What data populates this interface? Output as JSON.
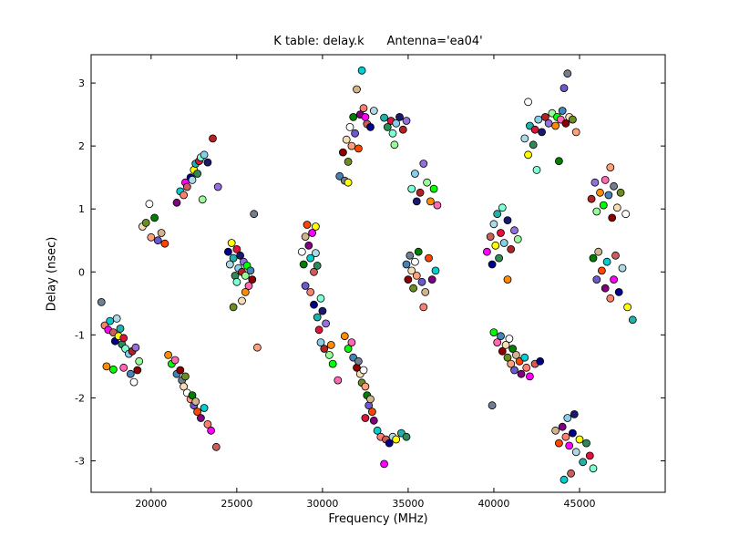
{
  "chart_data": {
    "type": "scatter",
    "title": "K table: delay.k      Antenna='ea04'",
    "xlabel": "Frequency (MHz)",
    "ylabel": "Delay (nsec)",
    "xlim": [
      16500,
      50000
    ],
    "ylim": [
      -3.5,
      3.45
    ],
    "xticks": [
      20000,
      25000,
      30000,
      35000,
      40000,
      45000
    ],
    "yticks": [
      -3,
      -2,
      -1,
      0,
      1,
      2,
      3
    ],
    "grid": false,
    "legend": "none",
    "marker": {
      "shape": "circle",
      "radius": 4,
      "edge_color": "#000000"
    },
    "palette": [
      "#00008b",
      "#87ceeb",
      "#ff8c00",
      "#fa8072",
      "#ffffff",
      "#2e8b57",
      "#8b0000",
      "#9370db",
      "#00ced1",
      "#ffff00",
      "#ff69b4",
      "#6b8e23",
      "#add8e6",
      "#008000",
      "#dc143c",
      "#708090",
      "#00ff00",
      "#ff00ff",
      "#4682b4",
      "#d2b48c",
      "#7fffd4",
      "#800080",
      "#ffa07a",
      "#191970",
      "#98fb98",
      "#cd5c5c",
      "#dcdcdc",
      "#ff4500",
      "#20b2aa",
      "#f5deb3",
      "#6a5acd",
      "#b22222"
    ],
    "points": [
      [
        17300,
        -0.85,
        3
      ],
      [
        17500,
        -0.92,
        17
      ],
      [
        17600,
        -0.78,
        8
      ],
      [
        17800,
        -0.96,
        25
      ],
      [
        17900,
        -1.1,
        0
      ],
      [
        18000,
        -0.74,
        12
      ],
      [
        18100,
        -1.02,
        9
      ],
      [
        18200,
        -0.9,
        28
      ],
      [
        18300,
        -1.15,
        5
      ],
      [
        18400,
        -1.05,
        14
      ],
      [
        18500,
        -1.22,
        20
      ],
      [
        18700,
        -1.3,
        1
      ],
      [
        18900,
        -1.26,
        31
      ],
      [
        19100,
        -1.2,
        7
      ],
      [
        19300,
        -1.42,
        24
      ],
      [
        17400,
        -1.5,
        2
      ],
      [
        17800,
        -1.55,
        16
      ],
      [
        18400,
        -1.52,
        10
      ],
      [
        18800,
        -1.62,
        18
      ],
      [
        19200,
        -1.56,
        6
      ],
      [
        17100,
        -0.48,
        15
      ],
      [
        19000,
        -1.75,
        4
      ],
      [
        19500,
        0.72,
        29
      ],
      [
        19700,
        0.78,
        11
      ],
      [
        19900,
        1.08,
        4
      ],
      [
        20000,
        0.55,
        22
      ],
      [
        20200,
        0.86,
        13
      ],
      [
        20400,
        0.5,
        30
      ],
      [
        20600,
        0.62,
        19
      ],
      [
        20800,
        0.45,
        27
      ],
      [
        21500,
        1.1,
        21
      ],
      [
        21700,
        1.28,
        8
      ],
      [
        21900,
        1.22,
        3
      ],
      [
        22000,
        1.42,
        17
      ],
      [
        22100,
        1.35,
        25
      ],
      [
        22300,
        1.5,
        0
      ],
      [
        22400,
        1.46,
        12
      ],
      [
        22500,
        1.62,
        9
      ],
      [
        22600,
        1.72,
        28
      ],
      [
        22700,
        1.56,
        5
      ],
      [
        22800,
        1.76,
        14
      ],
      [
        22900,
        1.82,
        20
      ],
      [
        23100,
        1.86,
        1
      ],
      [
        23300,
        1.74,
        23
      ],
      [
        23600,
        2.12,
        31
      ],
      [
        23900,
        1.35,
        7
      ],
      [
        23000,
        1.15,
        24
      ],
      [
        21000,
        -1.32,
        2
      ],
      [
        21200,
        -1.46,
        16
      ],
      [
        21400,
        -1.4,
        10
      ],
      [
        21500,
        -1.62,
        18
      ],
      [
        21700,
        -1.56,
        6
      ],
      [
        21800,
        -1.72,
        15
      ],
      [
        21900,
        -1.82,
        29
      ],
      [
        22000,
        -1.66,
        11
      ],
      [
        22100,
        -1.92,
        4
      ],
      [
        22300,
        -2.02,
        22
      ],
      [
        22400,
        -1.96,
        13
      ],
      [
        22500,
        -2.12,
        30
      ],
      [
        22600,
        -2.06,
        19
      ],
      [
        22700,
        -2.22,
        27
      ],
      [
        22900,
        -2.32,
        21
      ],
      [
        23100,
        -2.16,
        8
      ],
      [
        23300,
        -2.42,
        3
      ],
      [
        23500,
        -2.52,
        17
      ],
      [
        23800,
        -2.78,
        25
      ],
      [
        24500,
        0.32,
        0
      ],
      [
        24600,
        0.12,
        12
      ],
      [
        24700,
        0.46,
        9
      ],
      [
        24800,
        0.22,
        28
      ],
      [
        24900,
        -0.06,
        5
      ],
      [
        25000,
        0.36,
        14
      ],
      [
        25000,
        -0.16,
        20
      ],
      [
        25100,
        0.06,
        1
      ],
      [
        25200,
        0.26,
        23
      ],
      [
        25300,
        0.0,
        31
      ],
      [
        25400,
        0.16,
        7
      ],
      [
        25500,
        -0.06,
        24
      ],
      [
        25500,
        -0.32,
        2
      ],
      [
        25600,
        0.1,
        16
      ],
      [
        25700,
        -0.22,
        10
      ],
      [
        25800,
        0.02,
        18
      ],
      [
        25900,
        -0.12,
        6
      ],
      [
        26000,
        0.92,
        15
      ],
      [
        25300,
        -0.46,
        29
      ],
      [
        24800,
        -0.56,
        11
      ],
      [
        26200,
        -1.2,
        22
      ],
      [
        28800,
        0.32,
        4
      ],
      [
        28900,
        0.12,
        13
      ],
      [
        29000,
        -0.22,
        30
      ],
      [
        29000,
        0.56,
        19
      ],
      [
        29100,
        0.75,
        27
      ],
      [
        29200,
        0.42,
        21
      ],
      [
        29300,
        0.22,
        8
      ],
      [
        29300,
        -0.32,
        3
      ],
      [
        29400,
        0.62,
        17
      ],
      [
        29500,
        0.0,
        25
      ],
      [
        29500,
        -0.52,
        0
      ],
      [
        29600,
        0.3,
        12
      ],
      [
        29600,
        0.72,
        9
      ],
      [
        29700,
        -0.72,
        28
      ],
      [
        29700,
        0.1,
        5
      ],
      [
        29800,
        -0.92,
        14
      ],
      [
        29900,
        -0.42,
        20
      ],
      [
        29900,
        -1.12,
        1
      ],
      [
        30000,
        -0.62,
        23
      ],
      [
        30100,
        -1.22,
        31
      ],
      [
        30200,
        -0.82,
        7
      ],
      [
        30400,
        -1.32,
        24
      ],
      [
        30500,
        -1.16,
        2
      ],
      [
        30600,
        -1.46,
        16
      ],
      [
        30900,
        -1.72,
        10
      ],
      [
        31000,
        1.52,
        18
      ],
      [
        31200,
        1.9,
        6
      ],
      [
        31300,
        1.45,
        15
      ],
      [
        31400,
        2.1,
        29
      ],
      [
        31500,
        1.75,
        11
      ],
      [
        31600,
        2.3,
        4
      ],
      [
        31700,
        2.0,
        22
      ],
      [
        31800,
        2.46,
        13
      ],
      [
        31900,
        2.2,
        30
      ],
      [
        32000,
        2.9,
        19
      ],
      [
        32100,
        1.96,
        27
      ],
      [
        32200,
        2.5,
        21
      ],
      [
        32300,
        3.2,
        8
      ],
      [
        32400,
        2.6,
        3
      ],
      [
        32500,
        2.46,
        17
      ],
      [
        32600,
        2.35,
        25
      ],
      [
        32800,
        2.3,
        0
      ],
      [
        33000,
        2.56,
        12
      ],
      [
        31500,
        1.42,
        9
      ],
      [
        33600,
        2.45,
        28
      ],
      [
        33800,
        2.3,
        5
      ],
      [
        34000,
        2.4,
        14
      ],
      [
        34100,
        2.2,
        20
      ],
      [
        34300,
        2.36,
        1
      ],
      [
        34500,
        2.46,
        23
      ],
      [
        34700,
        2.26,
        31
      ],
      [
        34900,
        2.4,
        7
      ],
      [
        34200,
        2.02,
        24
      ],
      [
        31300,
        -1.02,
        2
      ],
      [
        31500,
        -1.22,
        16
      ],
      [
        31700,
        -1.12,
        10
      ],
      [
        31800,
        -1.36,
        18
      ],
      [
        32000,
        -1.52,
        6
      ],
      [
        32100,
        -1.42,
        15
      ],
      [
        32200,
        -1.62,
        29
      ],
      [
        32300,
        -1.76,
        11
      ],
      [
        32400,
        -1.56,
        4
      ],
      [
        32500,
        -1.82,
        22
      ],
      [
        32600,
        -1.96,
        13
      ],
      [
        32700,
        -2.12,
        30
      ],
      [
        32800,
        -2.02,
        19
      ],
      [
        32900,
        -2.22,
        27
      ],
      [
        33000,
        -2.36,
        21
      ],
      [
        33200,
        -2.52,
        8
      ],
      [
        33400,
        -2.62,
        3
      ],
      [
        33600,
        -3.05,
        17
      ],
      [
        33700,
        -2.66,
        25
      ],
      [
        33900,
        -2.72,
        0
      ],
      [
        34100,
        -2.62,
        12
      ],
      [
        34300,
        -2.66,
        9
      ],
      [
        34600,
        -2.56,
        28
      ],
      [
        34900,
        -2.62,
        5
      ],
      [
        32500,
        -2.32,
        14
      ],
      [
        35200,
        1.32,
        20
      ],
      [
        35400,
        1.56,
        1
      ],
      [
        35500,
        1.12,
        23
      ],
      [
        35700,
        1.26,
        31
      ],
      [
        35900,
        1.72,
        7
      ],
      [
        36100,
        1.42,
        24
      ],
      [
        36300,
        1.12,
        2
      ],
      [
        36500,
        1.32,
        16
      ],
      [
        36700,
        1.06,
        10
      ],
      [
        34900,
        0.12,
        18
      ],
      [
        35000,
        -0.12,
        6
      ],
      [
        35100,
        0.26,
        15
      ],
      [
        35200,
        0.02,
        29
      ],
      [
        35300,
        -0.26,
        11
      ],
      [
        35400,
        0.16,
        4
      ],
      [
        35500,
        -0.06,
        22
      ],
      [
        35600,
        0.32,
        13
      ],
      [
        35800,
        -0.16,
        30
      ],
      [
        36000,
        -0.32,
        19
      ],
      [
        36200,
        0.22,
        27
      ],
      [
        36400,
        -0.12,
        21
      ],
      [
        36600,
        0.02,
        8
      ],
      [
        35900,
        -0.56,
        3
      ],
      [
        39600,
        0.32,
        17
      ],
      [
        39800,
        0.56,
        25
      ],
      [
        39900,
        0.12,
        0
      ],
      [
        40000,
        0.76,
        12
      ],
      [
        40100,
        0.42,
        9
      ],
      [
        40200,
        0.92,
        28
      ],
      [
        40300,
        0.22,
        5
      ],
      [
        40400,
        0.62,
        14
      ],
      [
        40500,
        1.02,
        20
      ],
      [
        40600,
        0.46,
        1
      ],
      [
        40800,
        0.82,
        23
      ],
      [
        41000,
        0.36,
        31
      ],
      [
        41200,
        0.66,
        7
      ],
      [
        41400,
        0.52,
        24
      ],
      [
        40800,
        -0.12,
        2
      ],
      [
        39900,
        -2.12,
        15
      ],
      [
        40000,
        -0.96,
        16
      ],
      [
        40200,
        -1.12,
        10
      ],
      [
        40400,
        -1.02,
        18
      ],
      [
        40500,
        -1.26,
        6
      ],
      [
        40700,
        -1.16,
        29
      ],
      [
        40800,
        -1.36,
        11
      ],
      [
        40900,
        -1.06,
        4
      ],
      [
        41000,
        -1.46,
        22
      ],
      [
        41100,
        -1.22,
        13
      ],
      [
        41200,
        -1.56,
        30
      ],
      [
        41300,
        -1.32,
        19
      ],
      [
        41500,
        -1.42,
        27
      ],
      [
        41600,
        -1.62,
        21
      ],
      [
        41800,
        -1.36,
        8
      ],
      [
        41900,
        -1.52,
        3
      ],
      [
        42100,
        -1.66,
        17
      ],
      [
        42400,
        -1.46,
        25
      ],
      [
        42700,
        -1.42,
        0
      ],
      [
        41800,
        2.12,
        12
      ],
      [
        42000,
        2.7,
        4
      ],
      [
        42000,
        1.86,
        9
      ],
      [
        42100,
        2.32,
        28
      ],
      [
        42300,
        2.02,
        5
      ],
      [
        42400,
        2.26,
        14
      ],
      [
        42500,
        1.62,
        20
      ],
      [
        42600,
        2.42,
        1
      ],
      [
        42800,
        2.22,
        23
      ],
      [
        43000,
        2.46,
        31
      ],
      [
        43200,
        2.36,
        7
      ],
      [
        43400,
        2.52,
        24
      ],
      [
        43600,
        2.32,
        2
      ],
      [
        43700,
        2.46,
        16
      ],
      [
        43900,
        2.42,
        10
      ],
      [
        44000,
        2.56,
        18
      ],
      [
        44200,
        2.36,
        6
      ],
      [
        44300,
        3.15,
        15
      ],
      [
        44400,
        2.46,
        29
      ],
      [
        44600,
        2.42,
        11
      ],
      [
        44800,
        2.22,
        22
      ],
      [
        43800,
        1.76,
        13
      ],
      [
        44100,
        2.92,
        30
      ],
      [
        43600,
        -2.52,
        19
      ],
      [
        43800,
        -2.72,
        27
      ],
      [
        44000,
        -2.46,
        21
      ],
      [
        44100,
        -3.3,
        8
      ],
      [
        44200,
        -2.62,
        3
      ],
      [
        44400,
        -2.76,
        17
      ],
      [
        44500,
        -3.2,
        25
      ],
      [
        44600,
        -2.56,
        0
      ],
      [
        44800,
        -2.86,
        12
      ],
      [
        45000,
        -2.66,
        9
      ],
      [
        45200,
        -3.02,
        28
      ],
      [
        45400,
        -2.72,
        5
      ],
      [
        45600,
        -2.92,
        14
      ],
      [
        45800,
        -3.12,
        20
      ],
      [
        44300,
        -2.32,
        1
      ],
      [
        44700,
        -2.26,
        23
      ],
      [
        45700,
        1.16,
        31
      ],
      [
        45900,
        1.42,
        7
      ],
      [
        46000,
        0.96,
        24
      ],
      [
        46200,
        1.26,
        2
      ],
      [
        46400,
        1.06,
        16
      ],
      [
        46500,
        1.46,
        10
      ],
      [
        46700,
        1.22,
        18
      ],
      [
        46900,
        0.86,
        6
      ],
      [
        47000,
        1.36,
        15
      ],
      [
        47200,
        1.02,
        29
      ],
      [
        47400,
        1.26,
        11
      ],
      [
        47700,
        0.92,
        4
      ],
      [
        46800,
        1.66,
        22
      ],
      [
        45800,
        0.22,
        13
      ],
      [
        46000,
        -0.12,
        30
      ],
      [
        46100,
        0.32,
        19
      ],
      [
        46300,
        0.02,
        27
      ],
      [
        46500,
        -0.26,
        21
      ],
      [
        46600,
        0.16,
        8
      ],
      [
        46800,
        -0.42,
        3
      ],
      [
        47000,
        -0.12,
        17
      ],
      [
        47100,
        0.26,
        25
      ],
      [
        47300,
        -0.32,
        0
      ],
      [
        47500,
        0.06,
        12
      ],
      [
        47800,
        -0.56,
        9
      ],
      [
        48100,
        -0.76,
        28
      ]
    ]
  }
}
